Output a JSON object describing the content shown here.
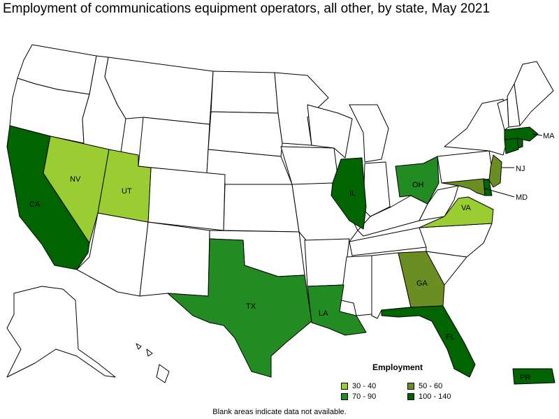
{
  "title": "Employment of communications equipment operators, all other, by state, May 2021",
  "colors": {
    "none": "#ffffff",
    "bin_30_40": "#9acd32",
    "bin_50_60": "#6b8e23",
    "bin_70_90": "#228b22",
    "bin_100_140": "#006400"
  },
  "legend": {
    "title": "Employment",
    "items": [
      {
        "label": "30 - 40",
        "color": "#9acd32"
      },
      {
        "label": "50 - 60",
        "color": "#6b8e23"
      },
      {
        "label": "70 - 90",
        "color": "#228b22"
      },
      {
        "label": "100 - 140",
        "color": "#006400"
      }
    ]
  },
  "state_labels": {
    "CA": "CA",
    "NV": "NV",
    "UT": "UT",
    "TX": "TX",
    "LA": "LA",
    "IL": "IL",
    "OH": "OH",
    "GA": "GA",
    "FL": "FL",
    "VA": "VA",
    "NJ": "NJ",
    "MD": "MD",
    "MA": "MA",
    "PR": "PR"
  },
  "footnote": "Blank areas indicate data not available."
}
